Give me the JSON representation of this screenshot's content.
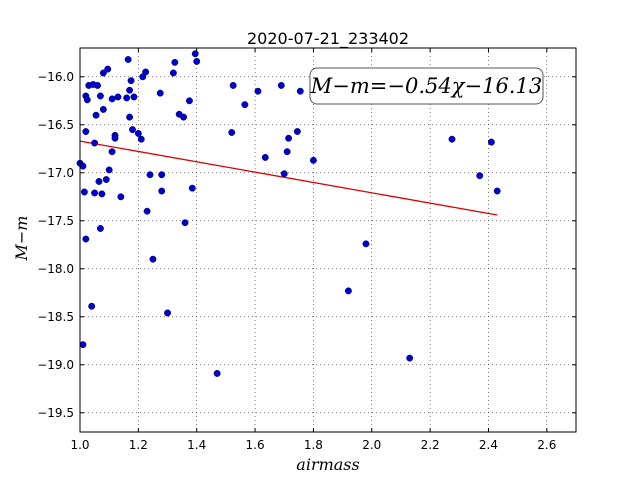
{
  "chart_data": {
    "type": "scatter",
    "title": "2020-07-21_233402",
    "xlabel": "airmass",
    "ylabel": "M−m",
    "annotation": "M−m=−0.54χ−16.13",
    "xlim": [
      1.0,
      2.7
    ],
    "ylim": [
      -19.7,
      -15.7
    ],
    "y_inverted": false,
    "x_ticks": [
      1.0,
      1.2,
      1.4,
      1.6,
      1.8,
      2.0,
      2.2,
      2.4,
      2.6
    ],
    "x_tick_labels": [
      "1.0",
      "1.2",
      "1.4",
      "1.6",
      "1.8",
      "2.0",
      "2.2",
      "2.4",
      "2.6"
    ],
    "y_ticks": [
      -16.0,
      -16.5,
      -17.0,
      -17.5,
      -18.0,
      -18.5,
      -19.0,
      -19.5
    ],
    "y_tick_labels": [
      "−16.0",
      "−16.5",
      "−17.0",
      "−17.5",
      "−18.0",
      "−18.5",
      "−19.0",
      "−19.5"
    ],
    "grid": true,
    "point_color": "#0000cc",
    "fit_color": "#dd0000",
    "fit_line": {
      "x": [
        1.0,
        2.43
      ],
      "y": [
        -16.67,
        -17.44
      ]
    },
    "points": [
      [
        1.0,
        -16.9
      ],
      [
        1.01,
        -18.79
      ],
      [
        1.01,
        -16.93
      ],
      [
        1.015,
        -17.2
      ],
      [
        1.02,
        -17.69
      ],
      [
        1.02,
        -16.2
      ],
      [
        1.02,
        -16.57
      ],
      [
        1.025,
        -16.24
      ],
      [
        1.03,
        -16.09
      ],
      [
        1.04,
        -18.39
      ],
      [
        1.045,
        -16.08
      ],
      [
        1.05,
        -16.69
      ],
      [
        1.05,
        -17.21
      ],
      [
        1.055,
        -16.4
      ],
      [
        1.06,
        -16.09
      ],
      [
        1.065,
        -17.09
      ],
      [
        1.07,
        -17.58
      ],
      [
        1.07,
        -16.2
      ],
      [
        1.075,
        -17.22
      ],
      [
        1.08,
        -16.34
      ],
      [
        1.08,
        -15.96
      ],
      [
        1.09,
        -17.07
      ],
      [
        1.095,
        -15.92
      ],
      [
        1.1,
        -16.97
      ],
      [
        1.11,
        -16.23
      ],
      [
        1.11,
        -16.78
      ],
      [
        1.12,
        -16.61
      ],
      [
        1.12,
        -16.64
      ],
      [
        1.13,
        -16.21
      ],
      [
        1.14,
        -17.25
      ],
      [
        1.16,
        -16.22
      ],
      [
        1.165,
        -15.82
      ],
      [
        1.17,
        -16.42
      ],
      [
        1.17,
        -16.14
      ],
      [
        1.175,
        -16.04
      ],
      [
        1.18,
        -16.55
      ],
      [
        1.185,
        -16.21
      ],
      [
        1.2,
        -16.59
      ],
      [
        1.21,
        -16.65
      ],
      [
        1.215,
        -16.0
      ],
      [
        1.225,
        -15.95
      ],
      [
        1.23,
        -17.4
      ],
      [
        1.24,
        -17.02
      ],
      [
        1.25,
        -17.9
      ],
      [
        1.275,
        -16.17
      ],
      [
        1.28,
        -17.19
      ],
      [
        1.28,
        -17.02
      ],
      [
        1.3,
        -18.46
      ],
      [
        1.32,
        -15.96
      ],
      [
        1.325,
        -15.85
      ],
      [
        1.34,
        -16.39
      ],
      [
        1.355,
        -16.42
      ],
      [
        1.36,
        -17.52
      ],
      [
        1.375,
        -16.25
      ],
      [
        1.385,
        -17.16
      ],
      [
        1.395,
        -15.76
      ],
      [
        1.4,
        -15.84
      ],
      [
        1.47,
        -19.09
      ],
      [
        1.52,
        -16.58
      ],
      [
        1.525,
        -16.09
      ],
      [
        1.565,
        -16.29
      ],
      [
        1.61,
        -16.15
      ],
      [
        1.635,
        -16.84
      ],
      [
        1.69,
        -16.09
      ],
      [
        1.7,
        -17.01
      ],
      [
        1.71,
        -16.78
      ],
      [
        1.715,
        -16.64
      ],
      [
        1.745,
        -16.57
      ],
      [
        1.755,
        -16.15
      ],
      [
        1.8,
        -16.87
      ],
      [
        1.92,
        -18.23
      ],
      [
        1.98,
        -17.74
      ],
      [
        2.13,
        -18.93
      ],
      [
        2.275,
        -16.65
      ],
      [
        2.37,
        -17.03
      ],
      [
        2.41,
        -16.68
      ],
      [
        2.43,
        -17.19
      ]
    ]
  }
}
